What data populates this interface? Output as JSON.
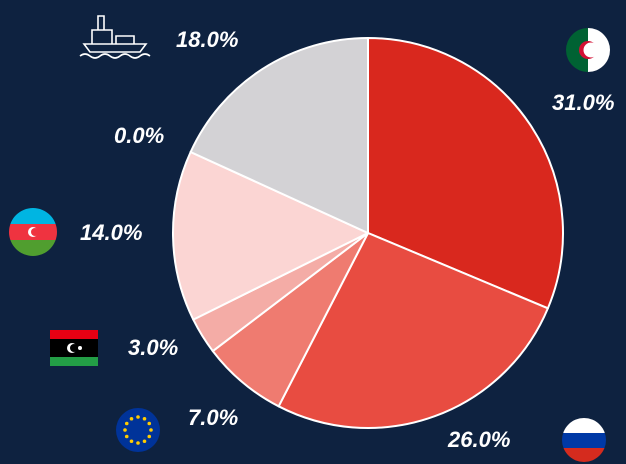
{
  "chart_data": {
    "type": "pie",
    "values": [
      31,
      26,
      7,
      3,
      14,
      0,
      18
    ],
    "value_labels": [
      "31.0%",
      "26.0%",
      "7.0%",
      "3.0%",
      "14.0%",
      "0.0%",
      "18.0%"
    ],
    "colors": [
      "#d9281e",
      "#e84c41",
      "#ef7b70",
      "#f4aca6",
      "#fbd5d3",
      "#e9e3e6",
      "#d3d2d5"
    ]
  }
}
